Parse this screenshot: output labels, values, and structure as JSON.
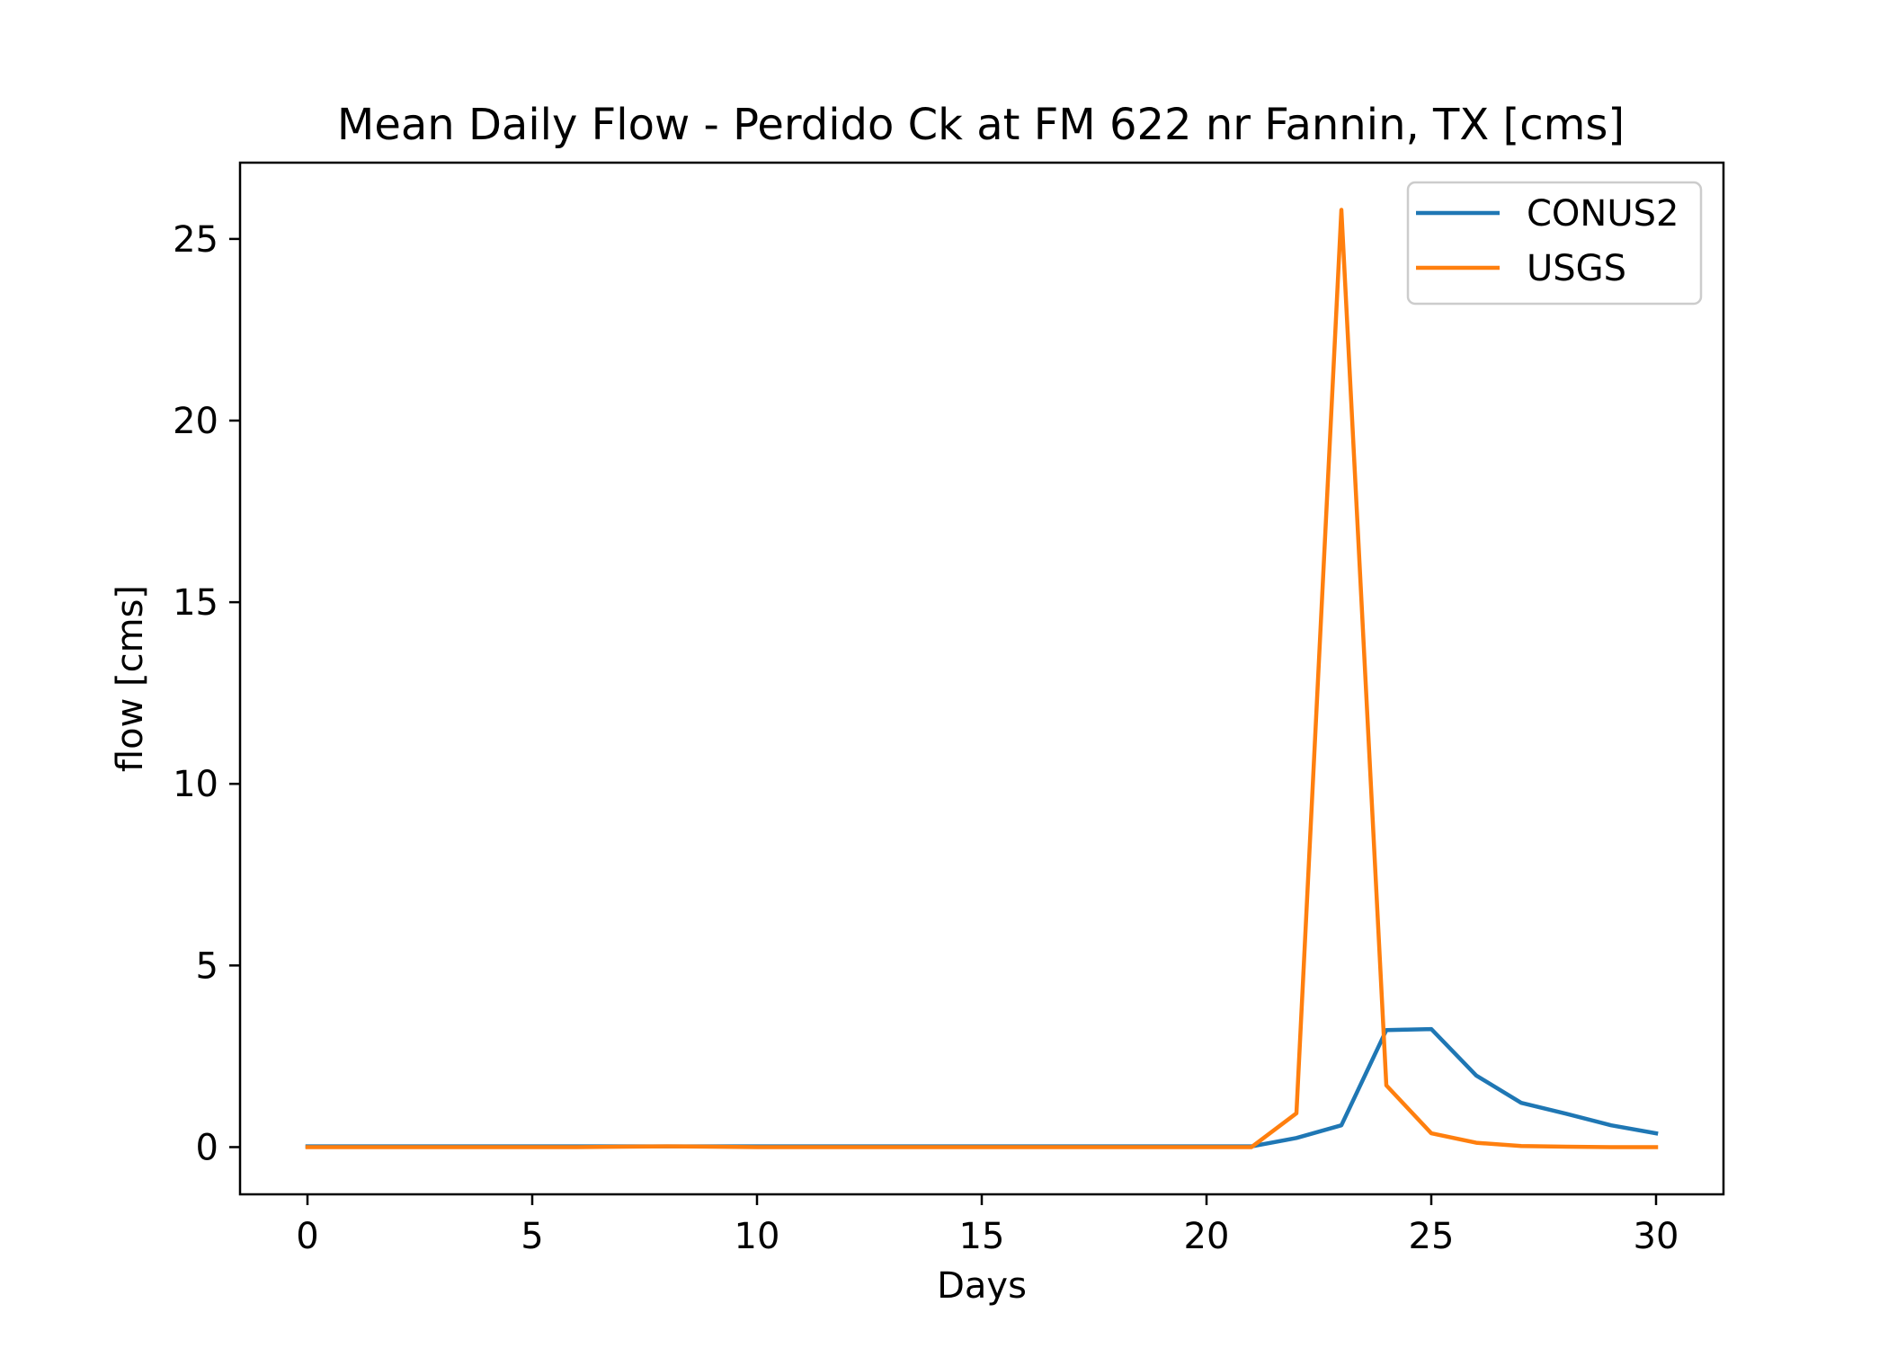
{
  "chart_data": {
    "type": "line",
    "title": "Mean Daily Flow - Perdido Ck at FM 622 nr Fannin, TX [cms]",
    "xlabel": "Days",
    "ylabel": "flow [cms]",
    "xlim": [
      -1.5,
      31.5
    ],
    "ylim": [
      -1.3,
      27.1
    ],
    "xticks": [
      0,
      5,
      10,
      15,
      20,
      25,
      30
    ],
    "yticks": [
      0,
      5,
      10,
      15,
      20,
      25
    ],
    "grid": false,
    "legend_position": "top-right",
    "x": [
      0,
      1,
      2,
      3,
      4,
      5,
      6,
      7,
      8,
      9,
      10,
      11,
      12,
      13,
      14,
      15,
      16,
      17,
      18,
      19,
      20,
      21,
      22,
      23,
      24,
      25,
      26,
      27,
      28,
      29,
      30
    ],
    "series": [
      {
        "name": "CONUS2",
        "color": "#1f77b4",
        "values": [
          0.02,
          0.02,
          0.02,
          0.02,
          0.02,
          0.02,
          0.02,
          0.02,
          0.02,
          0.02,
          0.02,
          0.02,
          0.02,
          0.02,
          0.02,
          0.02,
          0.02,
          0.02,
          0.02,
          0.02,
          0.02,
          0.02,
          0.25,
          0.6,
          3.22,
          3.25,
          1.97,
          1.22,
          0.92,
          0.6,
          0.38
        ]
      },
      {
        "name": "USGS",
        "color": "#ff7f0e",
        "values": [
          0.0,
          0.0,
          0.0,
          0.0,
          0.0,
          0.0,
          0.0,
          0.01,
          0.02,
          0.01,
          0.0,
          0.0,
          0.0,
          0.0,
          0.0,
          0.0,
          0.0,
          0.0,
          0.0,
          0.0,
          0.0,
          0.0,
          0.93,
          25.8,
          1.7,
          0.38,
          0.12,
          0.03,
          0.01,
          0.0,
          0.0
        ]
      }
    ]
  }
}
